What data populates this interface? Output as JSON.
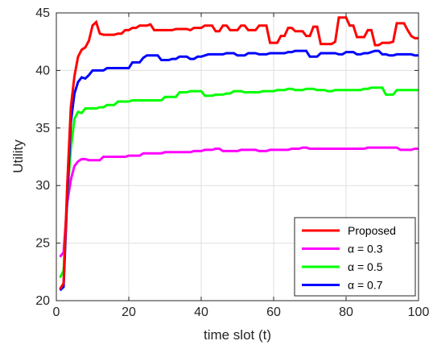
{
  "chart_data": {
    "type": "line",
    "xlabel": "time slot (t)",
    "ylabel": "Utility",
    "xlim": [
      0,
      100
    ],
    "ylim": [
      20,
      45
    ],
    "xticks": [
      0,
      20,
      40,
      60,
      80,
      100
    ],
    "yticks": [
      20,
      25,
      30,
      35,
      40,
      45
    ],
    "grid": true,
    "legend_position": "bottom-right",
    "x": [
      1,
      2,
      3,
      4,
      5,
      6,
      7,
      8,
      9,
      10,
      11,
      12,
      13,
      14,
      15,
      16,
      17,
      18,
      19,
      20,
      21,
      22,
      23,
      24,
      25,
      26,
      27,
      28,
      29,
      30,
      31,
      32,
      33,
      34,
      35,
      36,
      37,
      38,
      39,
      40,
      41,
      42,
      43,
      44,
      45,
      46,
      47,
      48,
      49,
      50,
      51,
      52,
      53,
      54,
      55,
      56,
      57,
      58,
      59,
      60,
      61,
      62,
      63,
      64,
      65,
      66,
      67,
      68,
      69,
      70,
      71,
      72,
      73,
      74,
      75,
      76,
      77,
      78,
      79,
      80,
      81,
      82,
      83,
      84,
      85,
      86,
      87,
      88,
      89,
      90,
      91,
      92,
      93,
      94,
      95,
      96,
      97,
      98,
      99,
      100
    ],
    "series": [
      {
        "name": "Proposed",
        "color": "#ff0000",
        "values": [
          21.0,
          21.5,
          30.0,
          36.8,
          39.5,
          41.2,
          41.8,
          42.0,
          42.6,
          43.9,
          44.2,
          43.2,
          43.1,
          43.1,
          43.1,
          43.1,
          43.2,
          43.2,
          43.5,
          43.5,
          43.7,
          43.7,
          43.9,
          43.9,
          43.9,
          44.0,
          43.5,
          43.5,
          43.5,
          43.5,
          43.5,
          43.5,
          43.6,
          43.6,
          43.6,
          43.6,
          43.5,
          43.7,
          43.7,
          43.7,
          43.9,
          43.9,
          43.9,
          43.4,
          43.4,
          43.9,
          43.9,
          43.5,
          43.5,
          43.5,
          43.9,
          43.9,
          43.5,
          43.5,
          43.5,
          43.9,
          43.9,
          43.9,
          42.4,
          42.4,
          42.4,
          43.0,
          43.0,
          43.7,
          43.7,
          43.4,
          43.4,
          43.4,
          43.0,
          43.0,
          43.8,
          43.8,
          42.3,
          42.3,
          42.3,
          42.3,
          42.5,
          44.6,
          44.6,
          44.6,
          43.9,
          43.9,
          42.9,
          42.9,
          42.9,
          43.5,
          43.5,
          42.2,
          42.2,
          42.4,
          42.4,
          42.4,
          42.5,
          44.1,
          44.1,
          44.1,
          43.5,
          43.0,
          42.8,
          42.8
        ]
      },
      {
        "name": "α = 0.3",
        "color": "#ff00ff",
        "values": [
          23.8,
          24.2,
          28.5,
          30.5,
          31.7,
          32.1,
          32.3,
          32.3,
          32.2,
          32.2,
          32.2,
          32.2,
          32.5,
          32.5,
          32.5,
          32.5,
          32.5,
          32.5,
          32.5,
          32.6,
          32.6,
          32.6,
          32.6,
          32.8,
          32.8,
          32.8,
          32.8,
          32.8,
          32.8,
          32.9,
          32.9,
          32.9,
          32.9,
          32.9,
          32.9,
          32.9,
          32.9,
          33.0,
          33.0,
          33.0,
          33.1,
          33.1,
          33.1,
          33.2,
          33.2,
          33.0,
          33.0,
          33.0,
          33.0,
          33.0,
          33.1,
          33.1,
          33.1,
          33.1,
          33.1,
          33.0,
          33.0,
          33.0,
          33.1,
          33.1,
          33.1,
          33.1,
          33.1,
          33.1,
          33.2,
          33.2,
          33.2,
          33.3,
          33.3,
          33.2,
          33.2,
          33.2,
          33.2,
          33.2,
          33.2,
          33.2,
          33.2,
          33.2,
          33.2,
          33.2,
          33.2,
          33.2,
          33.2,
          33.2,
          33.2,
          33.3,
          33.3,
          33.3,
          33.3,
          33.3,
          33.3,
          33.3,
          33.3,
          33.3,
          33.1,
          33.1,
          33.1,
          33.1,
          33.2,
          33.2
        ]
      },
      {
        "name": "α = 0.5",
        "color": "#00ff00",
        "values": [
          22.0,
          22.6,
          29.0,
          33.2,
          35.8,
          36.4,
          36.3,
          36.7,
          36.7,
          36.7,
          36.7,
          36.8,
          36.8,
          37.0,
          37.0,
          37.0,
          37.3,
          37.3,
          37.3,
          37.3,
          37.4,
          37.4,
          37.4,
          37.4,
          37.4,
          37.4,
          37.4,
          37.4,
          37.4,
          37.7,
          37.7,
          37.7,
          37.7,
          38.1,
          38.1,
          38.1,
          38.2,
          38.2,
          38.2,
          38.2,
          37.8,
          37.8,
          37.8,
          37.9,
          37.9,
          37.9,
          38.0,
          38.0,
          38.2,
          38.2,
          38.2,
          38.1,
          38.1,
          38.1,
          38.1,
          38.1,
          38.2,
          38.2,
          38.2,
          38.2,
          38.3,
          38.3,
          38.3,
          38.4,
          38.4,
          38.3,
          38.3,
          38.3,
          38.4,
          38.4,
          38.4,
          38.3,
          38.3,
          38.3,
          38.2,
          38.2,
          38.3,
          38.3,
          38.3,
          38.3,
          38.3,
          38.3,
          38.3,
          38.3,
          38.4,
          38.4,
          38.5,
          38.5,
          38.5,
          38.5,
          37.9,
          37.9,
          37.9,
          38.3,
          38.3,
          38.3,
          38.3,
          38.3,
          38.3,
          38.3
        ]
      },
      {
        "name": "α = 0.7",
        "color": "#0000ff",
        "values": [
          20.9,
          21.2,
          29.0,
          35.5,
          38.0,
          39.0,
          39.4,
          39.3,
          39.6,
          40.0,
          40.0,
          40.0,
          40.0,
          40.2,
          40.2,
          40.2,
          40.2,
          40.2,
          40.2,
          40.2,
          40.7,
          40.7,
          40.7,
          41.1,
          41.3,
          41.3,
          41.3,
          41.3,
          40.9,
          40.9,
          40.9,
          41.0,
          41.0,
          41.2,
          41.2,
          41.2,
          41.0,
          41.0,
          41.2,
          41.2,
          41.3,
          41.4,
          41.4,
          41.4,
          41.4,
          41.4,
          41.5,
          41.5,
          41.5,
          41.3,
          41.3,
          41.3,
          41.5,
          41.5,
          41.5,
          41.4,
          41.4,
          41.4,
          41.5,
          41.5,
          41.5,
          41.5,
          41.5,
          41.6,
          41.6,
          41.7,
          41.7,
          41.7,
          41.7,
          41.2,
          41.2,
          41.2,
          41.5,
          41.5,
          41.5,
          41.5,
          41.5,
          41.4,
          41.4,
          41.6,
          41.6,
          41.6,
          41.4,
          41.4,
          41.5,
          41.5,
          41.6,
          41.7,
          41.7,
          41.4,
          41.4,
          41.3,
          41.3,
          41.4,
          41.4,
          41.4,
          41.4,
          41.4,
          41.3,
          41.3
        ]
      }
    ]
  }
}
